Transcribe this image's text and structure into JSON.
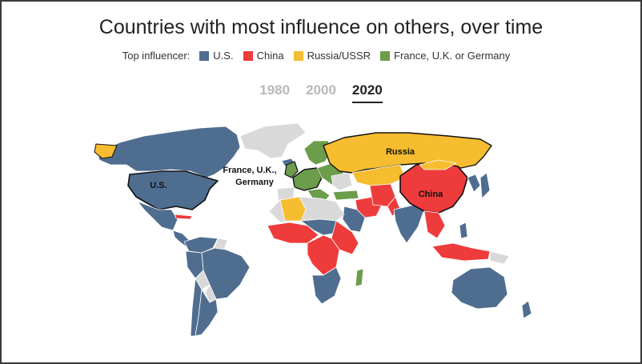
{
  "title": "Countries with most influence on others, over time",
  "legend": {
    "label": "Top influencer:",
    "items": [
      {
        "label": "U.S.",
        "color": "#4f6d8f"
      },
      {
        "label": "China",
        "color": "#ee3b3b"
      },
      {
        "label": "Russia/USSR",
        "color": "#f5bd2f"
      },
      {
        "label": "France, U.K. or Germany",
        "color": "#6b9d4b"
      }
    ]
  },
  "tabs": [
    {
      "label": "1980",
      "active": false
    },
    {
      "label": "2000",
      "active": false
    },
    {
      "label": "2020",
      "active": true
    }
  ],
  "map": {
    "labels": {
      "us": "U.S.",
      "europe_line1": "France, U.K.,",
      "europe_line2": "Germany",
      "russia": "Russia",
      "china": "China"
    },
    "no_data_color": "#d9d9d9"
  }
}
